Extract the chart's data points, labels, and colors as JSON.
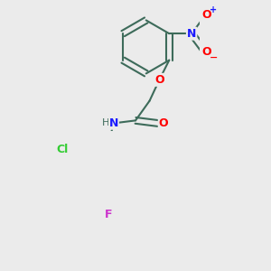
{
  "background_color": "#ebebeb",
  "bond_color": "#3d6b5a",
  "atom_colors": {
    "O": "#ff0000",
    "N_amine": "#1a1aff",
    "N_nitro": "#1a1aff",
    "Cl": "#33cc33",
    "F": "#cc33cc",
    "H": "#3d6b5a"
  },
  "figsize": [
    3.0,
    3.0
  ],
  "dpi": 100
}
